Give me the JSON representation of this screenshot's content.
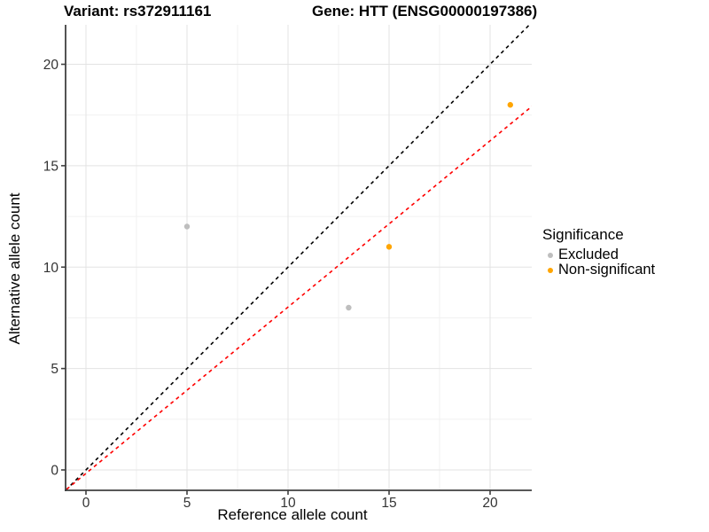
{
  "header": {
    "title_left": "Variant: rs372911161",
    "title_right": "Gene: HTT (ENSG00000197386)"
  },
  "axes": {
    "x_label": "Reference allele count",
    "y_label": "Alternative allele count"
  },
  "legend": {
    "title": "Significance",
    "items": [
      {
        "label": "Excluded",
        "color": "#BEBEBE"
      },
      {
        "label": "Non-significant",
        "color": "#FFA500"
      }
    ]
  },
  "chart_data": {
    "type": "scatter",
    "title": "Variant: rs372911161 — Gene: HTT (ENSG00000197386)",
    "xlabel": "Reference allele count",
    "ylabel": "Alternative allele count",
    "xlim": [
      -1,
      22.1
    ],
    "ylim": [
      -1,
      21.9
    ],
    "x_ticks": [
      0,
      5,
      10,
      15,
      20
    ],
    "y_ticks": [
      0,
      5,
      10,
      15,
      20
    ],
    "x_minor_ticks": [
      2.5,
      7.5,
      12.5,
      17.5
    ],
    "y_minor_ticks": [
      2.5,
      7.5,
      12.5,
      17.5
    ],
    "grid": true,
    "legend_title": "Significance",
    "legend_position": "right",
    "series": [
      {
        "name": "Excluded",
        "color": "#BEBEBE",
        "points": [
          {
            "x": 5,
            "y": 12
          },
          {
            "x": 13,
            "y": 8
          }
        ]
      },
      {
        "name": "Non-significant",
        "color": "#FFA500",
        "points": [
          {
            "x": 15,
            "y": 11
          },
          {
            "x": 21,
            "y": 18
          }
        ]
      }
    ],
    "reference_lines": [
      {
        "name": "identity-line",
        "slope": 1,
        "intercept": 0,
        "color": "#000000",
        "dashed": true
      },
      {
        "name": "fit-line",
        "slope": 0.82,
        "intercept": -0.17,
        "color": "#FF0000",
        "dashed": true
      }
    ]
  },
  "style_colors": {
    "grid_major": "#E3E3E3",
    "grid_minor": "#F1F1F1",
    "axis_line": "#404040",
    "tick_color": "#404040"
  }
}
